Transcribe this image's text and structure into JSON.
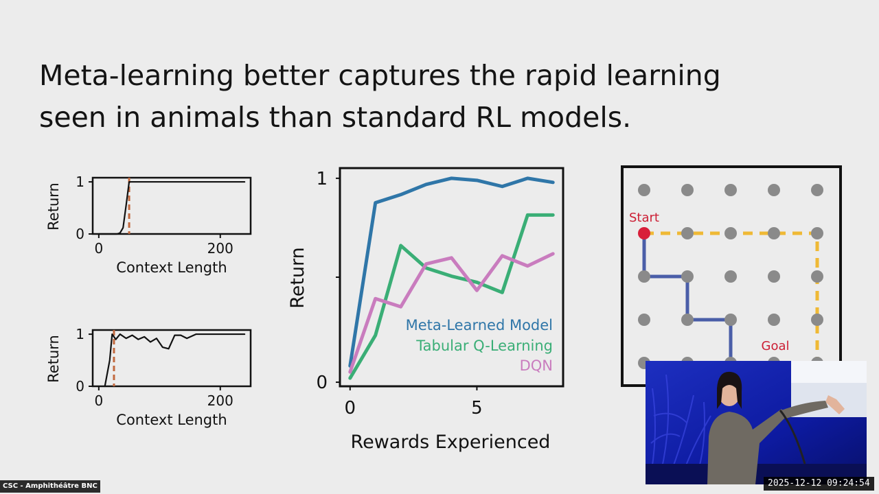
{
  "slide": {
    "title_line1": "Meta-learning better captures the rapid learning",
    "title_line2": "seen in animals than standard RL models."
  },
  "colors": {
    "meta": "#2f76a8",
    "tabular": "#3aae76",
    "dqn": "#c97cbe",
    "animal": "#111111",
    "marker": "#c2693f",
    "grid_path_blue": "#4a5ea8",
    "grid_path_yellow": "#efb935",
    "start_node": "#d81f3a",
    "goal_text": "#cc1e34"
  },
  "chart_data": [
    {
      "type": "line",
      "xlabel": "Context Length",
      "ylabel": "Return",
      "xlim": [
        -10,
        250
      ],
      "ylim": [
        0,
        1.08
      ],
      "xticks": [
        0,
        200
      ],
      "yticks": [
        0,
        1
      ],
      "series": [
        {
          "x": [
            0,
            20,
            30,
            35,
            40,
            45,
            50,
            60,
            100,
            150,
            200,
            240
          ],
          "values": [
            0,
            0,
            0,
            0.02,
            0.12,
            0.55,
            1,
            1,
            1,
            1,
            1,
            1
          ]
        }
      ],
      "marker_x": 50
    },
    {
      "type": "line",
      "xlabel": "Context Length",
      "ylabel": "Return",
      "xlim": [
        -10,
        250
      ],
      "ylim": [
        0,
        1.08
      ],
      "xticks": [
        0,
        200
      ],
      "yticks": [
        0,
        1
      ],
      "series": [
        {
          "x": [
            10,
            18,
            22,
            28,
            35,
            45,
            55,
            65,
            75,
            85,
            95,
            105,
            115,
            125,
            135,
            145,
            160,
            180,
            200,
            240
          ],
          "values": [
            0,
            0.5,
            1,
            0.9,
            1,
            0.92,
            0.98,
            0.9,
            0.95,
            0.85,
            0.92,
            0.75,
            0.72,
            0.98,
            0.98,
            0.92,
            1,
            1,
            1,
            1
          ]
        }
      ],
      "marker_x": 25
    },
    {
      "type": "line",
      "xlabel": "Rewards Experienced",
      "ylabel": "Return",
      "xlim": [
        -0.4,
        8.4
      ],
      "ylim": [
        -0.02,
        1.05
      ],
      "xticks": [
        0,
        5
      ],
      "yticks": [
        0,
        1
      ],
      "legend_position": "bottom-right",
      "series": [
        {
          "name": "Meta-Learned Model",
          "key": "meta",
          "x": [
            0,
            1,
            2,
            3,
            4,
            5,
            6,
            7,
            8
          ],
          "values": [
            0.08,
            0.88,
            0.92,
            0.97,
            1.0,
            0.99,
            0.96,
            1.0,
            0.98
          ]
        },
        {
          "name": "Tabular Q-Learning",
          "key": "tabular",
          "x": [
            0,
            1,
            2,
            3,
            4,
            5,
            6,
            7,
            8
          ],
          "values": [
            0.02,
            0.23,
            0.67,
            0.56,
            0.52,
            0.49,
            0.44,
            0.82,
            0.82
          ]
        },
        {
          "name": "DQN",
          "key": "dqn",
          "x": [
            0,
            1,
            2,
            3,
            4,
            5,
            6,
            7,
            8
          ],
          "values": [
            0.05,
            0.41,
            0.37,
            0.58,
            0.61,
            0.45,
            0.62,
            0.57,
            0.63
          ]
        }
      ]
    }
  ],
  "gridworld": {
    "start_label": "Start",
    "goal_label": "Goal",
    "cols": 5,
    "rows": 5
  },
  "overlay": {
    "location": "CSC - Amphithéâtre BNC",
    "timestamp": "2025-12-12  09:24:54"
  }
}
